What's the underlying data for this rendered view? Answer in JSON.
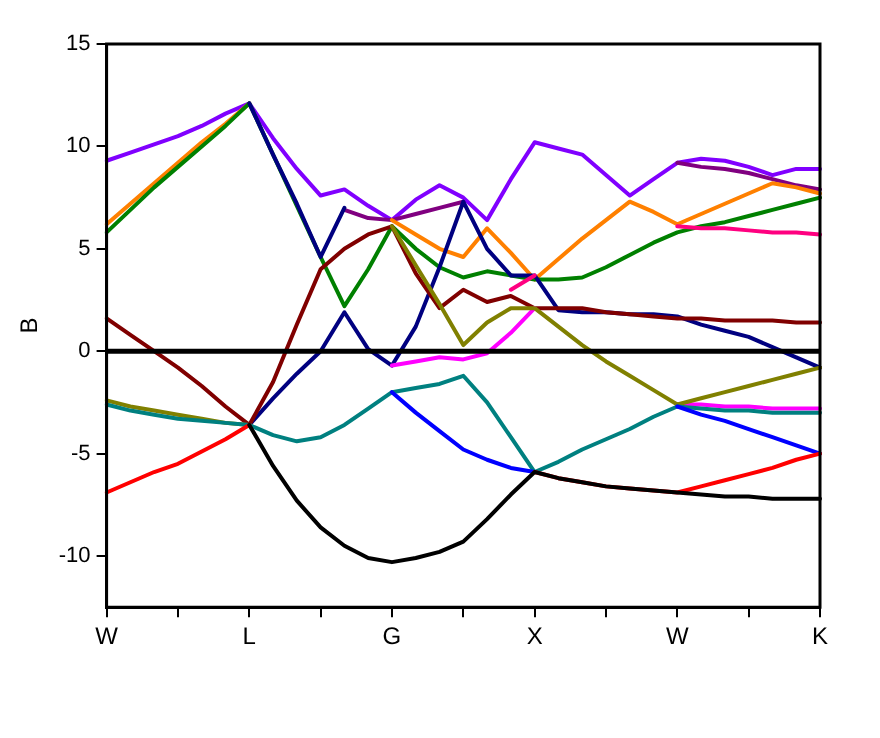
{
  "chart_data": {
    "type": "line",
    "ylabel": "B",
    "ylim": [
      -12.5,
      15
    ],
    "categories": [
      "W",
      null,
      null,
      null,
      null,
      null,
      "L",
      null,
      null,
      null,
      null,
      null,
      "G",
      null,
      null,
      null,
      null,
      null,
      "X",
      null,
      null,
      null,
      null,
      null,
      "W",
      null,
      null,
      null,
      null,
      null,
      "K"
    ],
    "yticks": [
      -10,
      -5,
      0,
      5,
      10,
      15
    ],
    "grid": false,
    "legend": false,
    "marker": "none",
    "line_style": "solid",
    "ref_lines": [
      {
        "axis": "y",
        "value": 0,
        "color": "#000000"
      }
    ],
    "series": [
      {
        "color": "#000000",
        "values": [
          null,
          null,
          null,
          null,
          null,
          null,
          -3.6,
          -5.6,
          -7.3,
          -8.6,
          -9.5,
          -10.1,
          -10.3,
          -10.1,
          -9.8,
          -9.3,
          -8.2,
          -7,
          -5.9,
          -6.2,
          -6.4,
          -6.6,
          -6.7,
          -6.8,
          -6.9,
          -7,
          -7.1,
          -7.1,
          -7.2,
          -7.2,
          -7.2
        ]
      },
      {
        "color": "#ff0000",
        "values": [
          -6.9,
          -6.4,
          -5.9,
          -5.5,
          -4.9,
          -4.3,
          -3.6,
          null,
          null,
          null,
          null,
          null,
          null,
          null,
          null,
          null,
          null,
          null,
          -5.9,
          -6.2,
          -6.4,
          -6.6,
          -6.7,
          -6.8,
          -6.9,
          -6.6,
          -6.3,
          -6,
          -5.7,
          -5.3,
          -5
        ]
      },
      {
        "color": "#0000ff",
        "values": [
          null,
          null,
          null,
          null,
          null,
          null,
          null,
          null,
          null,
          null,
          null,
          null,
          -2,
          -3,
          -3.9,
          -4.8,
          -5.3,
          -5.7,
          -5.9,
          null,
          null,
          null,
          null,
          null,
          -2.7,
          -3.1,
          -3.4,
          -3.8,
          -4.2,
          -4.6,
          -5
        ]
      },
      {
        "color": "#008080",
        "values": [
          -2.6,
          -2.9,
          -3.1,
          -3.3,
          -3.4,
          -3.5,
          -3.6,
          -4.1,
          -4.4,
          -4.2,
          -3.6,
          -2.8,
          -2,
          -1.8,
          -1.6,
          -1.2,
          -2.5,
          -4.2,
          -5.9,
          -5.4,
          -4.8,
          -4.3,
          -3.8,
          -3.2,
          -2.7,
          -2.8,
          -2.9,
          -2.9,
          -3,
          -3,
          -3
        ]
      },
      {
        "color": "#808000",
        "values": [
          -2.4,
          -2.7,
          -2.9,
          -3.1,
          -3.3,
          -3.5,
          -3.6,
          null,
          null,
          null,
          null,
          null,
          6.1,
          4.2,
          2.3,
          0.3,
          1.4,
          2.1,
          2.1,
          1.2,
          0.3,
          -0.5,
          -1.2,
          -1.9,
          -2.6,
          -2.3,
          -2,
          -1.7,
          -1.4,
          -1.1,
          -0.8
        ]
      },
      {
        "color": "#ff00ff",
        "values": [
          null,
          null,
          null,
          null,
          null,
          null,
          null,
          null,
          null,
          null,
          null,
          null,
          -0.7,
          -0.5,
          -0.3,
          -0.4,
          -0.1,
          0.9,
          2.1,
          null,
          null,
          null,
          null,
          null,
          -2.6,
          -2.6,
          -2.7,
          -2.7,
          -2.8,
          -2.8,
          -2.8
        ]
      },
      {
        "color": "#ff0080",
        "values": [
          null,
          null,
          null,
          null,
          null,
          null,
          null,
          null,
          null,
          null,
          null,
          null,
          null,
          null,
          null,
          null,
          null,
          3,
          3.7,
          null,
          null,
          null,
          null,
          null,
          6.1,
          6,
          6,
          5.9,
          5.8,
          5.8,
          5.7
        ]
      },
      {
        "color": "#800000",
        "values": [
          1.6,
          0.8,
          0,
          -0.8,
          -1.7,
          -2.7,
          -3.6,
          -1.5,
          1.3,
          4,
          5,
          5.7,
          6.1,
          3.8,
          2.1,
          3,
          2.4,
          2.7,
          2.1,
          2.1,
          2.1,
          1.9,
          1.8,
          1.7,
          1.6,
          1.6,
          1.5,
          1.5,
          1.5,
          1.4,
          1.4
        ]
      },
      {
        "color": "#000080",
        "values": [
          null,
          null,
          null,
          null,
          null,
          null,
          12.1,
          9.6,
          7.2,
          4.6,
          7,
          null,
          null,
          null,
          null,
          null,
          null,
          null,
          null,
          null,
          null,
          null,
          null,
          null,
          null,
          null,
          null,
          null,
          null,
          null,
          null
        ]
      },
      {
        "color": "#000080",
        "values": [
          null,
          null,
          null,
          null,
          null,
          null,
          -3.6,
          -2.3,
          -1.1,
          0,
          1.9,
          0.1,
          -0.7,
          1.2,
          4.1,
          7.3,
          5,
          3.7,
          3.7,
          2,
          1.9,
          1.9,
          1.8,
          1.8,
          1.7,
          1.3,
          1,
          0.7,
          0.2,
          -0.3,
          -0.8
        ]
      },
      {
        "color": "#008000",
        "values": [
          5.8,
          6.9,
          8,
          9,
          10,
          11,
          12.1,
          9.6,
          7.1,
          4.6,
          2.2,
          4,
          6.1,
          5,
          4.1,
          3.6,
          3.9,
          3.7,
          3.5,
          3.5,
          3.6,
          4.1,
          4.7,
          5.3,
          5.8,
          6.1,
          6.3,
          6.6,
          6.9,
          7.2,
          7.5
        ]
      },
      {
        "color": "#ff8000",
        "values": [
          6.2,
          7.2,
          8.2,
          9.2,
          10.2,
          11.1,
          12.1,
          null,
          null,
          null,
          null,
          null,
          6.4,
          5.7,
          5,
          4.6,
          6,
          4.8,
          3.5,
          4.5,
          5.5,
          6.4,
          7.3,
          6.8,
          6.2,
          6.7,
          7.2,
          7.7,
          8.2,
          8,
          7.7
        ]
      },
      {
        "color": "#800080",
        "values": [
          null,
          null,
          null,
          null,
          null,
          null,
          null,
          null,
          null,
          null,
          6.9,
          6.5,
          6.4,
          6.7,
          7,
          7.3,
          null,
          null,
          null,
          null,
          null,
          null,
          null,
          null,
          9.2,
          9,
          8.9,
          8.7,
          8.4,
          8.1,
          7.9
        ]
      },
      {
        "color": "#8000ff",
        "values": [
          9.3,
          9.7,
          10.1,
          10.5,
          11,
          11.6,
          12.1,
          10.4,
          8.9,
          7.6,
          7.9,
          7.1,
          6.4,
          7.4,
          8.1,
          7.5,
          6.4,
          8.4,
          10.2,
          9.9,
          9.6,
          8.6,
          7.6,
          8.4,
          9.2,
          9.4,
          9.3,
          9,
          8.6,
          8.9,
          8.9
        ]
      }
    ]
  }
}
